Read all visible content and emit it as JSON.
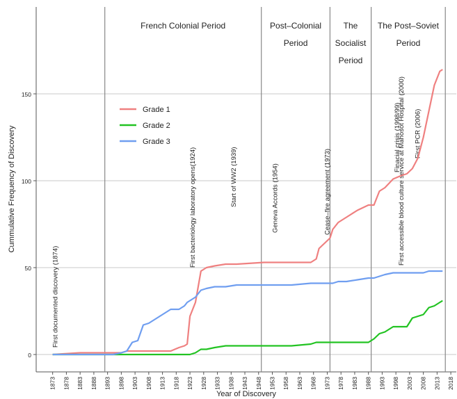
{
  "chart_data": {
    "type": "line",
    "x_label": "Year of Discovery",
    "y_label": "Cummulative Frequency of Discovery",
    "xlim": [
      1867,
      2020
    ],
    "ylim": [
      -10,
      200
    ],
    "xticks": [
      1873,
      1878,
      1883,
      1888,
      1893,
      1898,
      1903,
      1908,
      1913,
      1918,
      1923,
      1928,
      1933,
      1938,
      1943,
      1948,
      1953,
      1958,
      1963,
      1968,
      1973,
      1978,
      1983,
      1988,
      1993,
      1998,
      2003,
      2008,
      2013,
      2018
    ],
    "yticks": [
      0,
      50,
      100,
      150
    ],
    "grid": true,
    "legend_position": "upper left",
    "x": [
      1873,
      1883,
      1890,
      1895,
      1898,
      1900,
      1902,
      1904,
      1906,
      1908,
      1912,
      1916,
      1919,
      1921,
      1922,
      1923,
      1925,
      1927,
      1929,
      1932,
      1936,
      1940,
      1950,
      1960,
      1967,
      1969,
      1970,
      1972,
      1974,
      1975,
      1977,
      1980,
      1984,
      1988,
      1990,
      1992,
      1994,
      1997,
      2000,
      2002,
      2004,
      2006,
      2008,
      2010,
      2012,
      2014,
      2015
    ],
    "series": [
      {
        "name": "Grade 1",
        "color": "#ef8080",
        "values": [
          0,
          1,
          1,
          1,
          1,
          2,
          2,
          2,
          2,
          2,
          2,
          2,
          4,
          5,
          6,
          22,
          30,
          48,
          50,
          51,
          52,
          52,
          53,
          53,
          53,
          55,
          61,
          64,
          67,
          72,
          76,
          79,
          83,
          86,
          86,
          94,
          96,
          101,
          103,
          104,
          107,
          113,
          125,
          140,
          155,
          163,
          164
        ]
      },
      {
        "name": "Grade 2",
        "color": "#22c322",
        "values": [
          0,
          0,
          0,
          0,
          0,
          0,
          0,
          0,
          0,
          0,
          0,
          0,
          0,
          0,
          0,
          0,
          1,
          3,
          3,
          4,
          5,
          5,
          5,
          5,
          6,
          7,
          7,
          7,
          7,
          7,
          7,
          7,
          7,
          7,
          9,
          12,
          13,
          16,
          16,
          16,
          21,
          22,
          23,
          27,
          28,
          30,
          31
        ]
      },
      {
        "name": "Grade 3",
        "color": "#6f9ef0",
        "values": [
          0,
          0,
          0,
          0,
          1,
          2,
          7,
          8,
          17,
          18,
          22,
          26,
          26,
          28,
          30,
          31,
          33,
          37,
          38,
          39,
          39,
          40,
          40,
          40,
          41,
          41,
          41,
          41,
          41,
          41,
          42,
          42,
          43,
          44,
          44,
          45,
          46,
          47,
          47,
          47,
          47,
          47,
          47,
          48,
          48,
          48,
          48
        ]
      }
    ],
    "periods": [
      {
        "lines": [
          "French Colonial Period"
        ],
        "start": 1892,
        "end": 1949
      },
      {
        "lines": [
          "Post–Colonial",
          "Period"
        ],
        "start": 1949,
        "end": 1974
      },
      {
        "lines": [
          "The",
          "Socialist",
          "Period"
        ],
        "start": 1974,
        "end": 1989
      },
      {
        "lines": [
          "The Post–Soviet",
          "Period"
        ],
        "start": 1989,
        "end": 2016
      }
    ],
    "annotations": [
      {
        "text": "First documented discovery (1874)",
        "x": 1874
      },
      {
        "text": "First bacteriology laboratory opens(1924)",
        "x": 1924
      },
      {
        "text": "Start of WW2 (1939)",
        "x": 1939
      },
      {
        "text": "Geneva Accords (1954)",
        "x": 1954
      },
      {
        "text": "Cease–fire agreement (1973)",
        "x": 1973
      },
      {
        "text": "Finacial crisis (1998/99)",
        "x": 1998.5
      },
      {
        "text": "First accessible blood culture service at Mahosot Hospital (2000)",
        "x": 2000
      },
      {
        "text": "First PCR (2006)",
        "x": 2006
      }
    ]
  }
}
